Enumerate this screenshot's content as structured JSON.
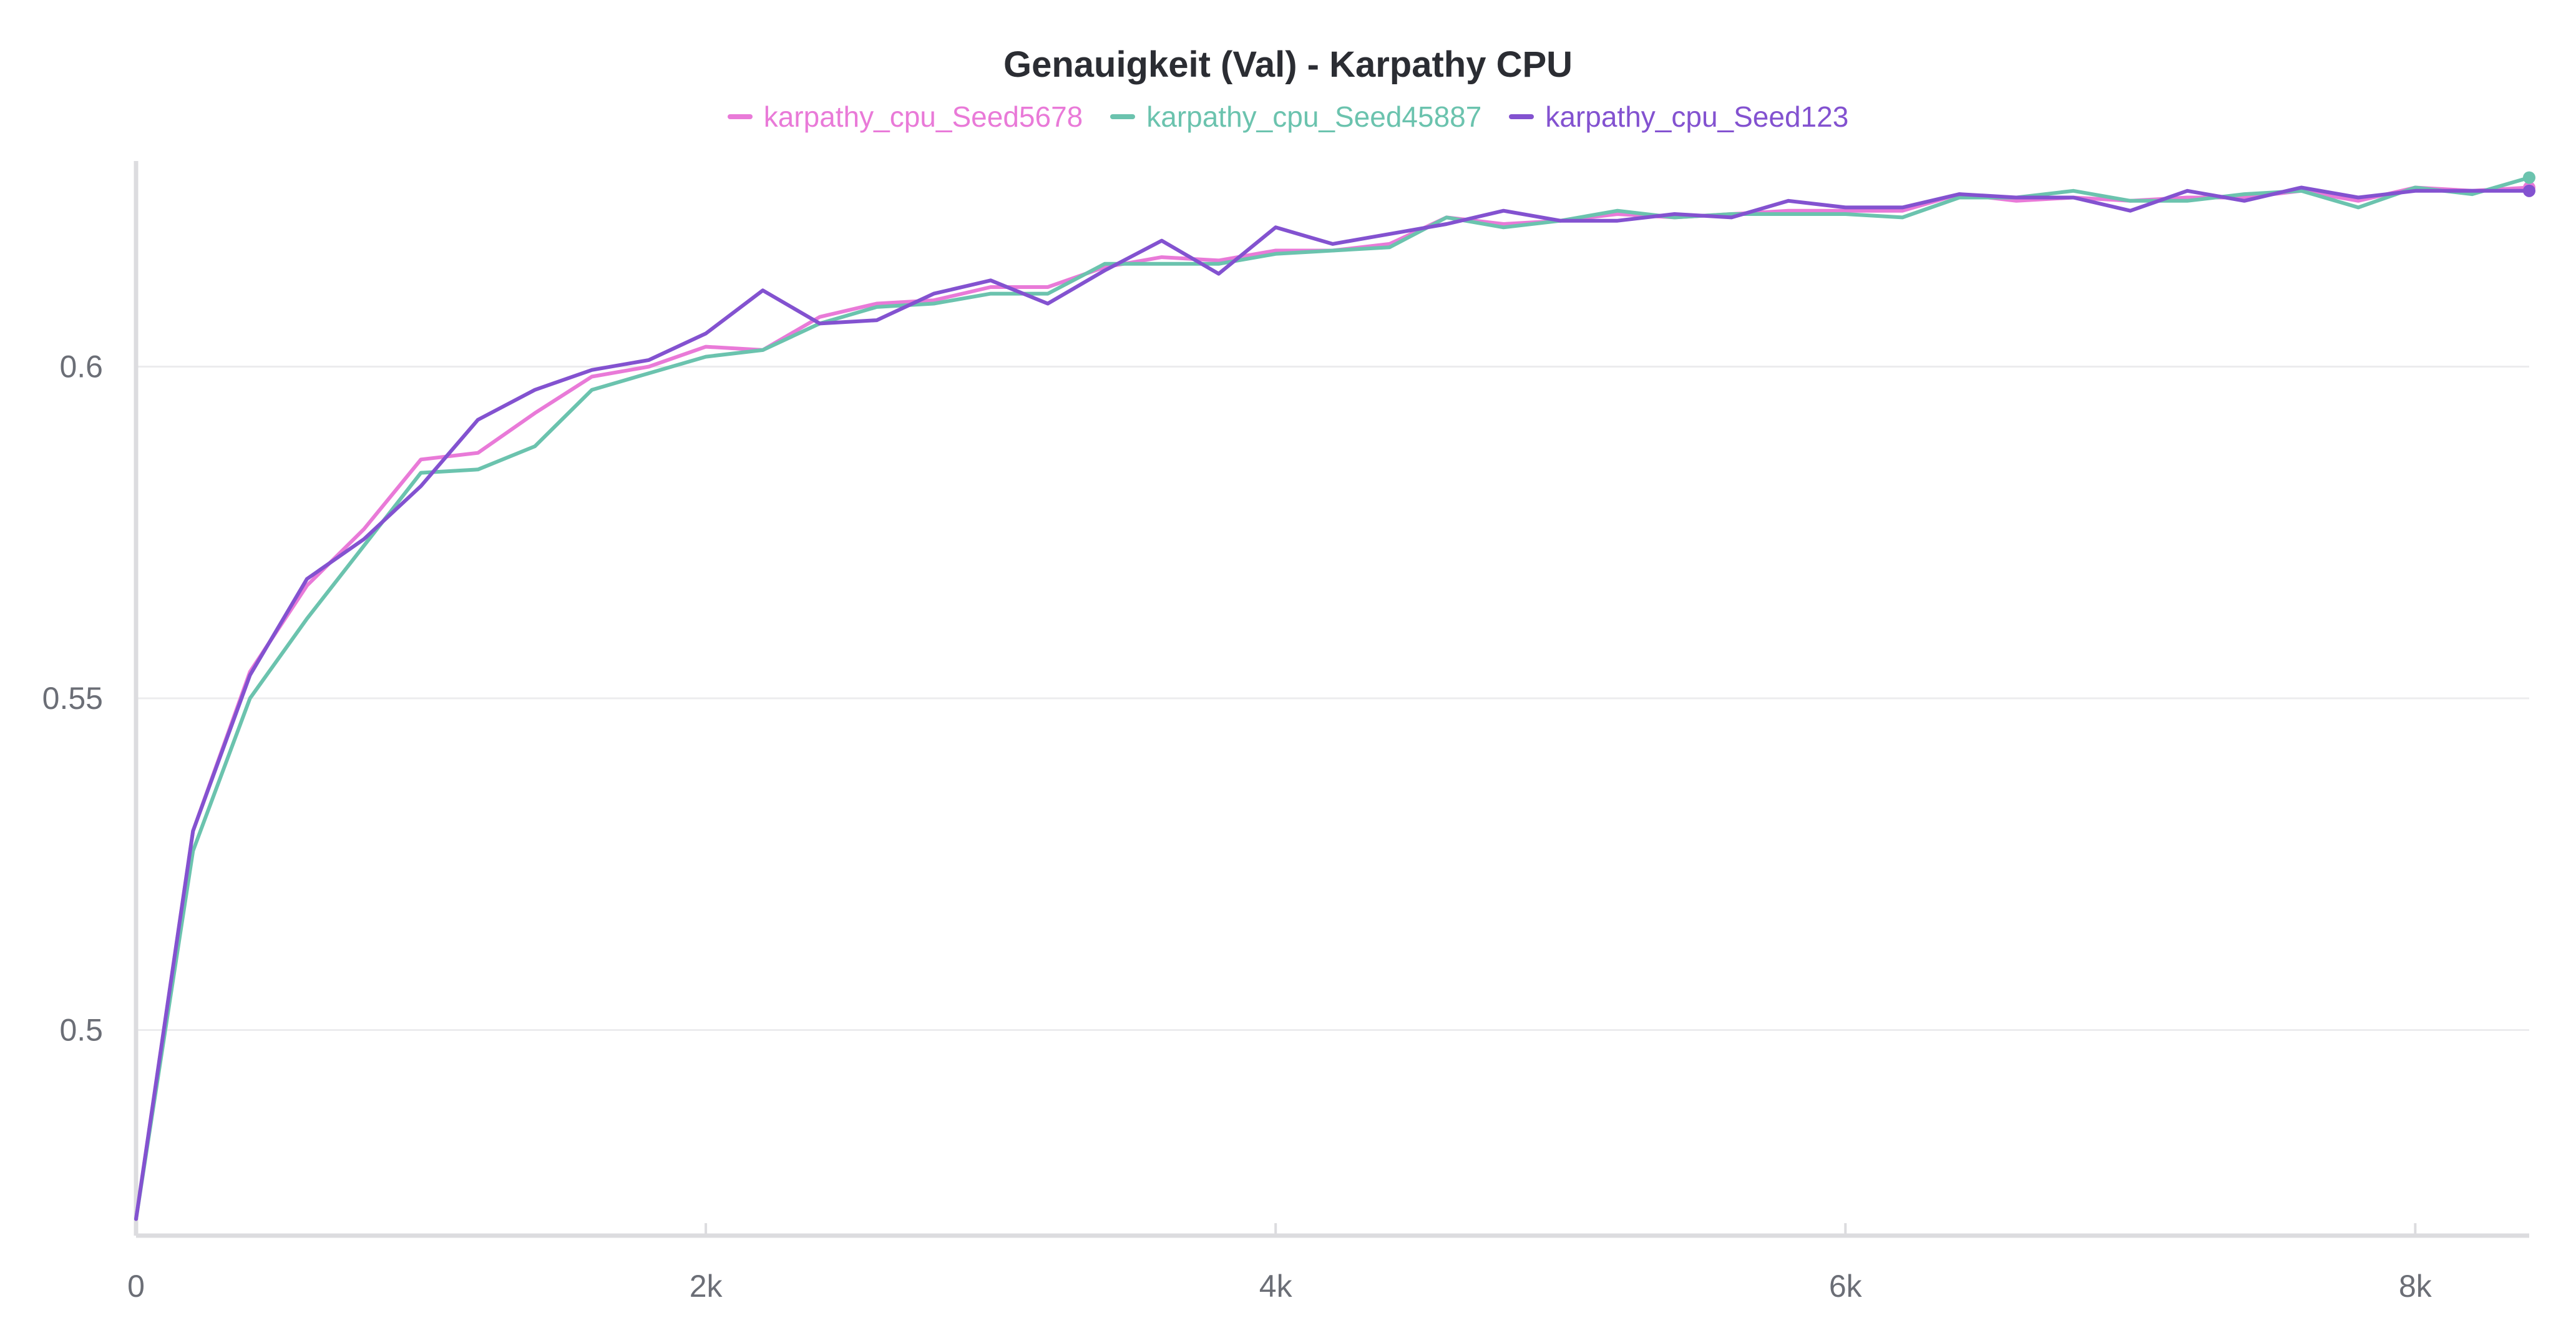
{
  "chart_data": {
    "type": "line",
    "title": "Genauigkeit (Val) - Karpathy CPU",
    "xlabel": "",
    "ylabel": "",
    "xlim": [
      0,
      8400
    ],
    "ylim": [
      0.469,
      0.631
    ],
    "grid": true,
    "legend_position": "top-center",
    "x_ticks": [
      {
        "value": 0,
        "label": "0"
      },
      {
        "value": 2000,
        "label": "2k"
      },
      {
        "value": 4000,
        "label": "4k"
      },
      {
        "value": 6000,
        "label": "6k"
      },
      {
        "value": 8000,
        "label": "8k"
      }
    ],
    "y_ticks": [
      {
        "value": 0.5,
        "label": "0.5"
      },
      {
        "value": 0.55,
        "label": "0.55"
      },
      {
        "value": 0.6,
        "label": "0.6"
      }
    ],
    "series": [
      {
        "name": "karpathy_cpu_Seed5678",
        "color": "#e97ad8",
        "x": [
          0,
          200,
          400,
          600,
          800,
          1000,
          1200,
          1400,
          1600,
          1800,
          2000,
          2200,
          2400,
          2600,
          2800,
          3000,
          3200,
          3400,
          3600,
          3800,
          4000,
          4200,
          4400,
          4600,
          4800,
          5000,
          5200,
          5400,
          5600,
          5800,
          6000,
          6200,
          6400,
          6600,
          6800,
          7000,
          7200,
          7400,
          7600,
          7800,
          8000,
          8200,
          8400
        ],
        "y": [
          0.4715,
          0.53,
          0.554,
          0.567,
          0.5755,
          0.586,
          0.587,
          0.593,
          0.5985,
          0.6,
          0.603,
          0.6025,
          0.6075,
          0.6095,
          0.61,
          0.612,
          0.612,
          0.615,
          0.6165,
          0.616,
          0.6175,
          0.6175,
          0.6185,
          0.6225,
          0.6215,
          0.622,
          0.623,
          0.6225,
          0.623,
          0.6235,
          0.6235,
          0.6235,
          0.626,
          0.625,
          0.6255,
          0.625,
          0.6255,
          0.6255,
          0.6265,
          0.625,
          0.627,
          0.6265,
          0.627
        ]
      },
      {
        "name": "karpathy_cpu_Seed45887",
        "color": "#6bc3ae",
        "x": [
          0,
          200,
          400,
          600,
          800,
          1000,
          1200,
          1400,
          1600,
          1800,
          2000,
          2200,
          2400,
          2600,
          2800,
          3000,
          3200,
          3400,
          3600,
          3800,
          4000,
          4200,
          4400,
          4600,
          4800,
          5000,
          5200,
          5400,
          5600,
          5800,
          6000,
          6200,
          6400,
          6600,
          6800,
          7000,
          7200,
          7400,
          7600,
          7800,
          8000,
          8200,
          8400
        ],
        "y": [
          0.4715,
          0.527,
          0.55,
          0.562,
          0.573,
          0.584,
          0.5845,
          0.588,
          0.5965,
          0.599,
          0.6015,
          0.6025,
          0.6065,
          0.609,
          0.6095,
          0.611,
          0.611,
          0.6155,
          0.6155,
          0.6155,
          0.617,
          0.6175,
          0.618,
          0.6225,
          0.621,
          0.622,
          0.6235,
          0.6225,
          0.623,
          0.623,
          0.623,
          0.6225,
          0.6255,
          0.6255,
          0.6265,
          0.625,
          0.625,
          0.626,
          0.6265,
          0.624,
          0.627,
          0.626,
          0.6285
        ]
      },
      {
        "name": "karpathy_cpu_Seed123",
        "color": "#8352d0",
        "x": [
          0,
          200,
          400,
          600,
          800,
          1000,
          1200,
          1400,
          1600,
          1800,
          2000,
          2200,
          2400,
          2600,
          2800,
          3000,
          3200,
          3400,
          3600,
          3800,
          4000,
          4200,
          4400,
          4600,
          4800,
          5000,
          5200,
          5400,
          5600,
          5800,
          6000,
          6200,
          6400,
          6600,
          6800,
          7000,
          7200,
          7400,
          7600,
          7800,
          8000,
          8200,
          8400
        ],
        "y": [
          0.4715,
          0.53,
          0.5535,
          0.568,
          0.574,
          0.582,
          0.592,
          0.5965,
          0.5995,
          0.601,
          0.605,
          0.6115,
          0.6065,
          0.607,
          0.611,
          0.613,
          0.6095,
          0.6145,
          0.619,
          0.614,
          0.621,
          0.6185,
          0.62,
          0.6215,
          0.6235,
          0.622,
          0.622,
          0.623,
          0.6225,
          0.625,
          0.624,
          0.624,
          0.626,
          0.6255,
          0.6255,
          0.6235,
          0.6265,
          0.625,
          0.627,
          0.6255,
          0.6265,
          0.6265,
          0.6265
        ]
      }
    ]
  }
}
